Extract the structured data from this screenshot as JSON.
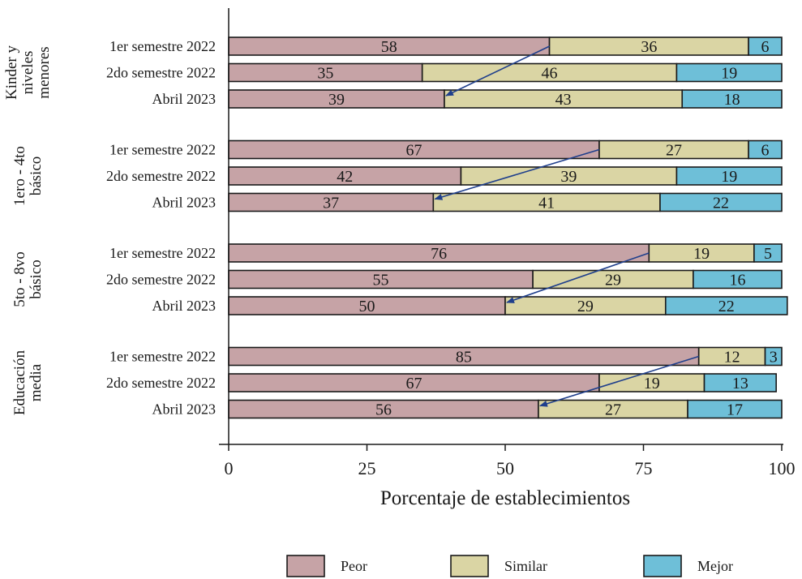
{
  "chart_data": {
    "type": "bar",
    "orientation": "horizontal",
    "stacked": true,
    "title": "",
    "xlabel": "Porcentaje de establecimientos",
    "ylabel": "",
    "xlim": [
      0,
      100
    ],
    "xticks": [
      0,
      25,
      50,
      75,
      100
    ],
    "grid": false,
    "legend_position": "bottom",
    "legend": [
      {
        "name": "Peor",
        "color": "#c6a3a6"
      },
      {
        "name": "Similar",
        "color": "#dad5a4"
      },
      {
        "name": "Mejor",
        "color": "#6ebfd8"
      }
    ],
    "series": [
      {
        "name": "Peor",
        "color": "#c6a3a6"
      },
      {
        "name": "Similar",
        "color": "#dad5a4"
      },
      {
        "name": "Mejor",
        "color": "#6ebfd8"
      }
    ],
    "groups": [
      {
        "name": [
          "Kinder y",
          "niveles",
          "menores"
        ],
        "rows": [
          {
            "label": "1er semestre 2022",
            "values": [
              58,
              36,
              6
            ]
          },
          {
            "label": "2do semestre 2022",
            "values": [
              35,
              46,
              19
            ]
          },
          {
            "label": "Abril 2023",
            "values": [
              39,
              43,
              18
            ]
          }
        ]
      },
      {
        "name": [
          "1ero - 4to",
          "básico"
        ],
        "rows": [
          {
            "label": "1er semestre 2022",
            "values": [
              67,
              27,
              6
            ]
          },
          {
            "label": "2do semestre 2022",
            "values": [
              42,
              39,
              19
            ]
          },
          {
            "label": "Abril 2023",
            "values": [
              37,
              41,
              22
            ]
          }
        ]
      },
      {
        "name": [
          "5to - 8vo",
          "básico"
        ],
        "rows": [
          {
            "label": "1er semestre 2022",
            "values": [
              76,
              19,
              5
            ]
          },
          {
            "label": "2do semestre 2022",
            "values": [
              55,
              29,
              16
            ]
          },
          {
            "label": "Abril 2023",
            "values": [
              50,
              29,
              22
            ]
          }
        ]
      },
      {
        "name": [
          "Educación",
          "media"
        ],
        "rows": [
          {
            "label": "1er semestre 2022",
            "values": [
              85,
              12,
              3
            ]
          },
          {
            "label": "2do semestre 2022",
            "values": [
              67,
              19,
              13
            ]
          },
          {
            "label": "Abril 2023",
            "values": [
              56,
              27,
              17
            ]
          }
        ]
      }
    ],
    "annotations": [
      {
        "type": "arrow",
        "from_row": "1er semestre 2022",
        "to_row": "Abril 2023",
        "series": "Peor",
        "color": "#1f3f8c"
      }
    ]
  }
}
